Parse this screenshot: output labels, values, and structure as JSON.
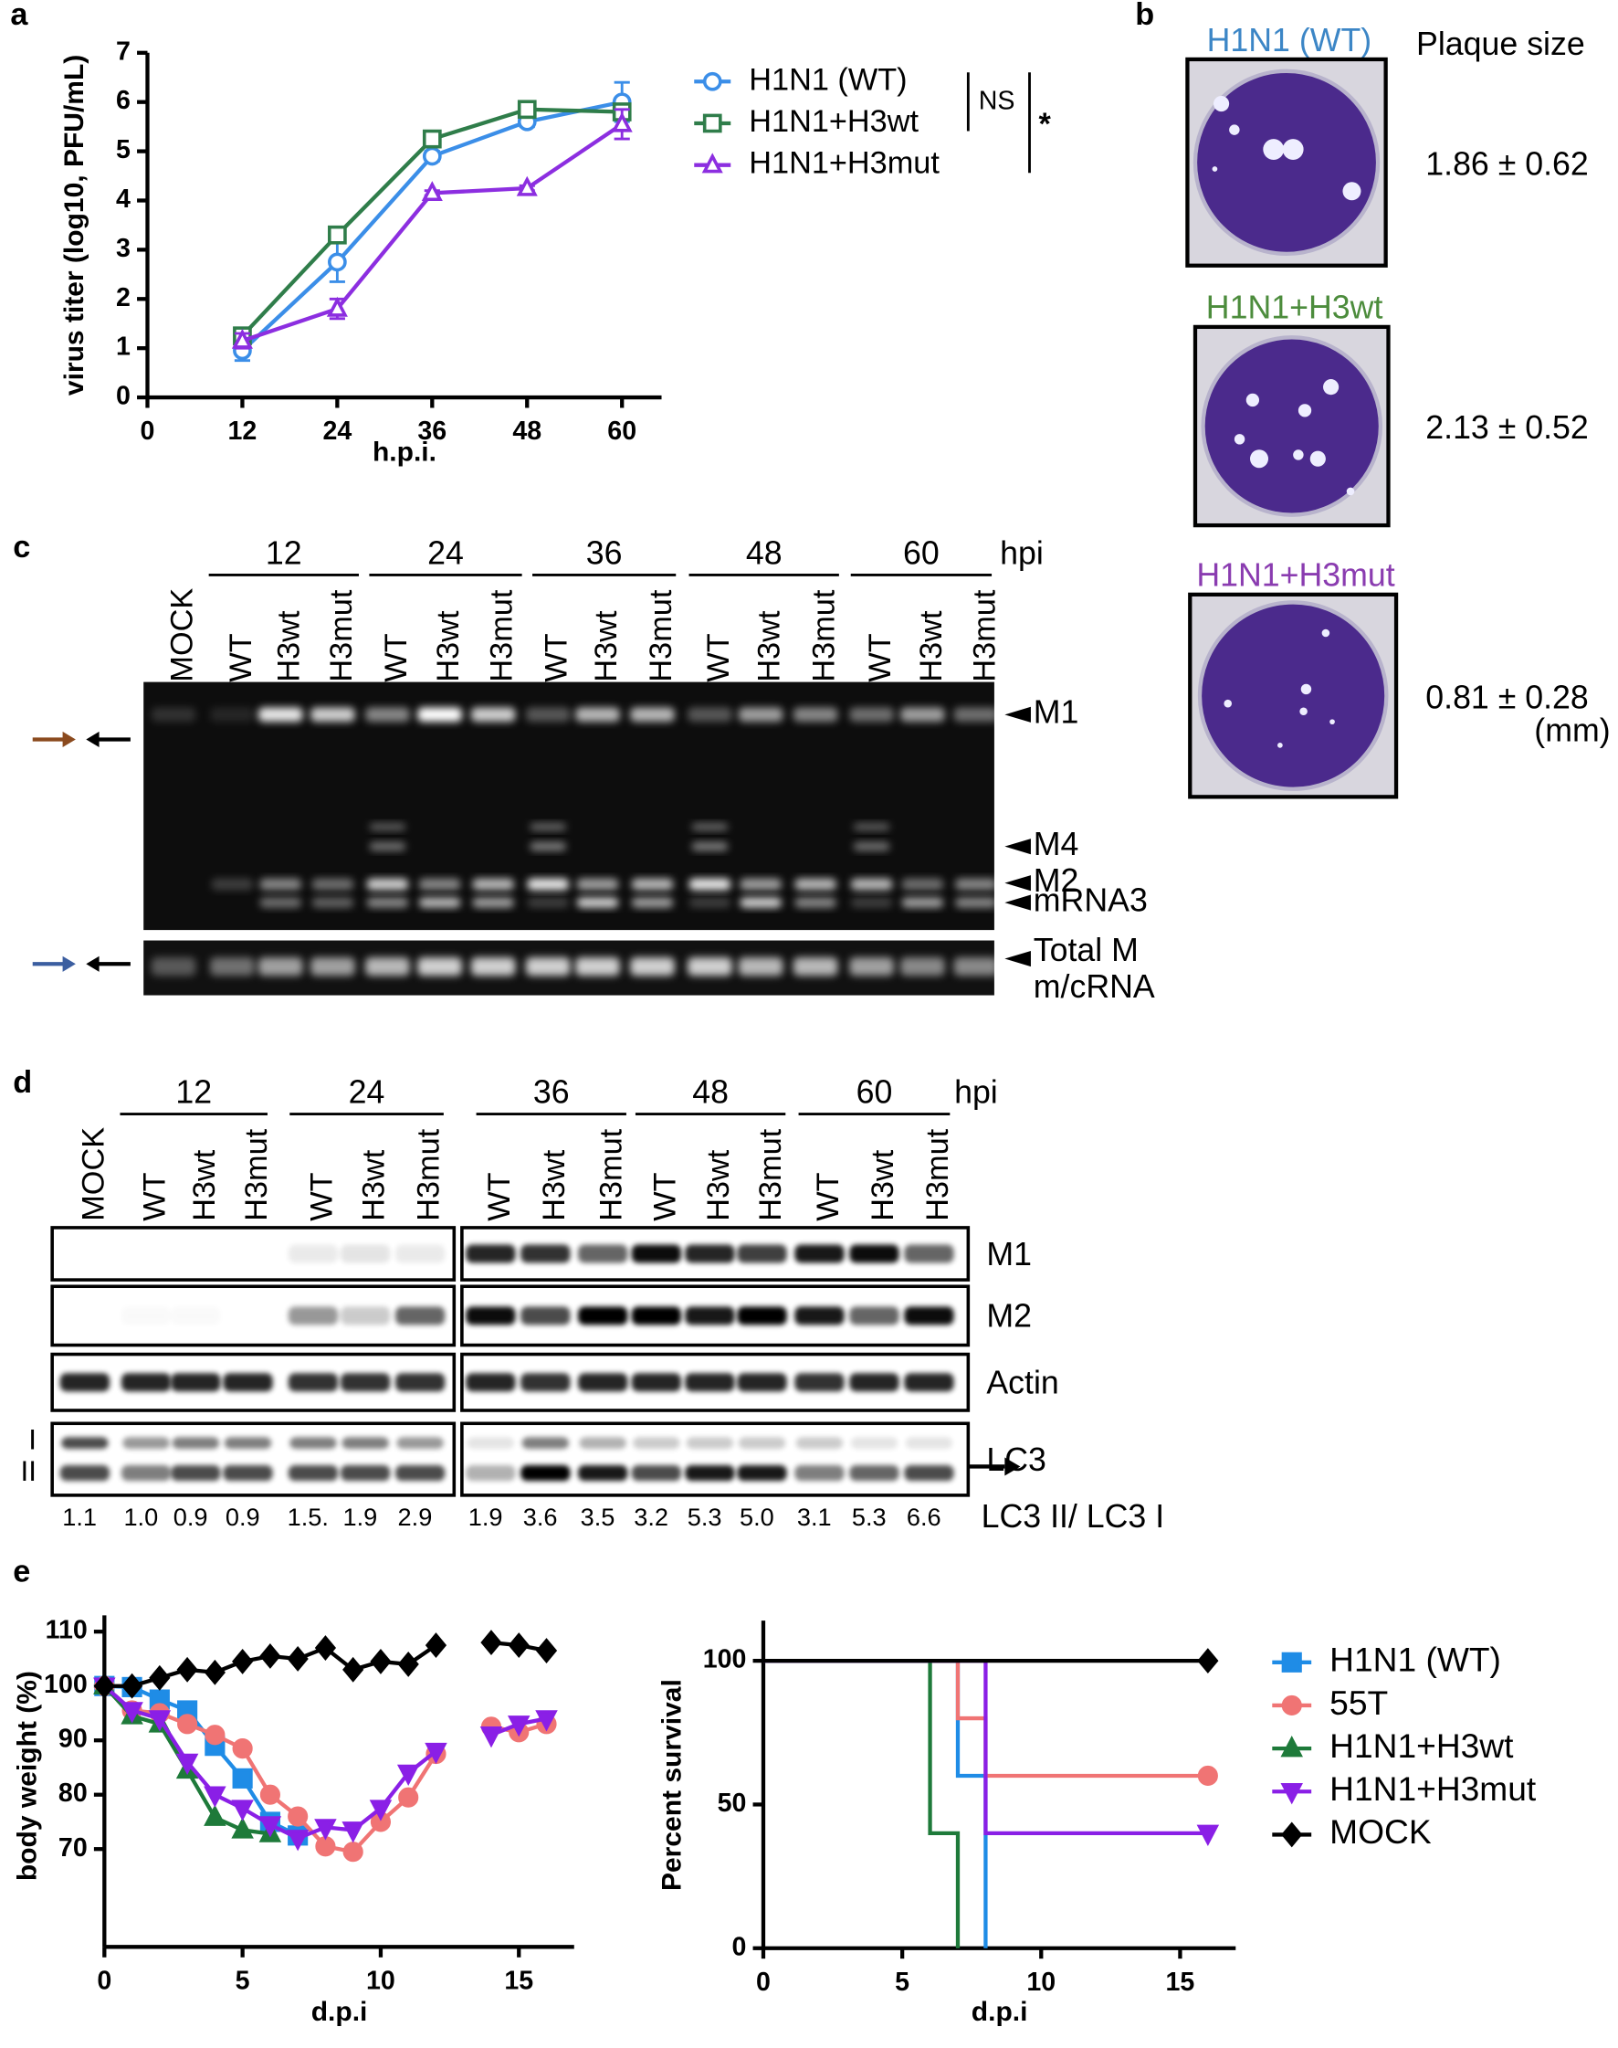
{
  "chart_data": [
    {
      "type": "line",
      "panel": "a",
      "ylabel": "virus titer (log10, PFU/mL)",
      "xlabel": "h.p.i.",
      "x": [
        12,
        24,
        36,
        48,
        60
      ],
      "xlim": [
        0,
        65
      ],
      "xticks": [
        0,
        12,
        24,
        36,
        48,
        60
      ],
      "ylim": [
        0,
        7
      ],
      "yticks": [
        0,
        1,
        2,
        3,
        4,
        5,
        6,
        7
      ],
      "marker_fill": "open",
      "legend": "right",
      "annotations": [
        "NS",
        "*"
      ],
      "series": [
        {
          "name": "H1N1 (WT)",
          "color": "#3b8ee8",
          "marker": "circle",
          "values": [
            0.95,
            2.75,
            4.9,
            5.6,
            6.0
          ],
          "errors": [
            0.2,
            0.4,
            0.1,
            0.1,
            0.4
          ]
        },
        {
          "name": "H1N1+H3wt",
          "color": "#2f7d4a",
          "marker": "square",
          "values": [
            1.25,
            3.3,
            5.25,
            5.85,
            5.8
          ],
          "errors": [
            0.15,
            0.1,
            0.1,
            0.15,
            0.1
          ]
        },
        {
          "name": "H1N1+H3mut",
          "color": "#8c2ee0",
          "marker": "triangle",
          "values": [
            1.15,
            1.8,
            4.15,
            4.25,
            5.55
          ],
          "errors": [
            0.15,
            0.2,
            0.05,
            0.05,
            0.3
          ]
        }
      ]
    },
    {
      "type": "line",
      "panel": "e",
      "ylabel": "body weight (%)",
      "xlabel": "d.p.i",
      "x": [
        0,
        1,
        2,
        3,
        4,
        5,
        6,
        7,
        8,
        9,
        10,
        11,
        12,
        13,
        14,
        15,
        16
      ],
      "xlim": [
        0,
        17
      ],
      "xticks": [
        0,
        5,
        10,
        15
      ],
      "ylim": [
        52,
        113
      ],
      "yticks": [
        70,
        80,
        90,
        100,
        110
      ],
      "marker_fill": "filled",
      "series": [
        {
          "name": "H1N1 (WT)",
          "color": "#1f8ce6",
          "marker": "square",
          "values": [
            100,
            99.8,
            97.5,
            95.5,
            89,
            83,
            75,
            72.5,
            null,
            null,
            null,
            null,
            null,
            null,
            null,
            null,
            null
          ]
        },
        {
          "name": "55T",
          "color": "#f07474",
          "marker": "circle",
          "values": [
            100,
            95.5,
            95,
            93,
            91,
            88.5,
            80,
            76,
            70.5,
            69.5,
            75,
            79.5,
            87.5,
            null,
            92.5,
            91.5,
            93
          ]
        },
        {
          "name": "H1N1+H3wt",
          "color": "#1e7a3a",
          "marker": "triangle",
          "values": [
            100,
            94.5,
            93,
            84.5,
            75.8,
            73.5,
            72.8,
            null,
            null,
            null,
            null,
            null,
            null,
            null,
            null,
            null,
            null
          ]
        },
        {
          "name": "H1N1+H3mut",
          "color": "#8a1fe6",
          "marker": "triangle-down",
          "values": [
            100,
            95.5,
            94,
            86,
            80,
            77.5,
            74.5,
            72,
            74,
            73.5,
            77.5,
            84,
            88,
            null,
            91,
            93,
            94
          ]
        },
        {
          "name": "MOCK",
          "color": "#000000",
          "marker": "diamond",
          "values": [
            100,
            100,
            101.5,
            103,
            102.5,
            104.5,
            105.5,
            105,
            107,
            103,
            104.5,
            104,
            107.5,
            null,
            108,
            107.5,
            106.5
          ]
        }
      ]
    },
    {
      "type": "step",
      "ylabel": "Percent survival",
      "xlabel": "d.p.i",
      "xlim": [
        0,
        17
      ],
      "xticks": [
        0,
        5,
        10,
        15
      ],
      "ylim": [
        0,
        114
      ],
      "yticks": [
        0,
        50,
        100
      ],
      "marker_fill": "filled",
      "legend": "right",
      "series": [
        {
          "name": "H1N1 (WT)",
          "color": "#1f8ce6",
          "marker": "square",
          "end_marker": false,
          "x": [
            0,
            7,
            7,
            8,
            8
          ],
          "values": [
            100,
            100,
            60,
            60,
            0
          ]
        },
        {
          "name": "55T",
          "color": "#f07474",
          "marker": "circle",
          "end_marker": true,
          "x": [
            0,
            7,
            7,
            8,
            8,
            16
          ],
          "values": [
            100,
            100,
            80,
            80,
            60,
            60
          ]
        },
        {
          "name": "H1N1+H3wt",
          "color": "#1e7a3a",
          "marker": "triangle",
          "end_marker": false,
          "x": [
            0,
            6,
            6,
            7,
            7
          ],
          "values": [
            100,
            100,
            40,
            40,
            0
          ]
        },
        {
          "name": "H1N1+H3mut",
          "color": "#8a1fe6",
          "marker": "triangle-down",
          "end_marker": true,
          "x": [
            0,
            8,
            8,
            16
          ],
          "values": [
            100,
            100,
            40,
            40
          ]
        },
        {
          "name": "MOCK",
          "color": "#000000",
          "marker": "diamond",
          "end_marker": true,
          "x": [
            0,
            16
          ],
          "values": [
            100,
            100
          ]
        }
      ]
    }
  ],
  "panel_b": {
    "letter": "b",
    "header": "Plaque size",
    "unit": "(mm)",
    "samples": [
      {
        "name": "H1N1 (WT)",
        "color": "#3c86c6",
        "size": "1.86 ± 0.62"
      },
      {
        "name": "H1N1+H3wt",
        "color": "#4c8c3c",
        "size": "2.13 ± 0.52"
      },
      {
        "name": "H1N1+H3mut",
        "color": "#8a3cb0",
        "size": "0.81 ± 0.28"
      }
    ]
  },
  "panel_c": {
    "letter": "c",
    "unit": "hpi",
    "times": [
      12,
      24,
      36,
      48,
      60
    ],
    "lanes": [
      "MOCK",
      "WT",
      "H3wt",
      "H3mut",
      "WT",
      "H3wt",
      "H3mut",
      "WT",
      "H3wt",
      "H3mut",
      "WT",
      "H3wt",
      "H3mut",
      "WT",
      "H3wt",
      "H3mut"
    ],
    "bands": [
      "M1",
      "M4",
      "M2",
      "mRNA3"
    ],
    "total": [
      "Total M",
      "m/cRNA"
    ]
  },
  "panel_d": {
    "letter": "d",
    "unit": "hpi",
    "times": [
      12,
      24,
      36,
      48,
      60
    ],
    "lanes": [
      "MOCK",
      "WT",
      "H3wt",
      "H3mut",
      "WT",
      "H3wt",
      "H3mut",
      "WT",
      "H3wt",
      "H3mut",
      "WT",
      "H3wt",
      "H3mut",
      "WT",
      "H3wt",
      "H3mut"
    ],
    "rows": [
      "M1",
      "M2",
      "Actin",
      "LC3"
    ],
    "lc3_forms": [
      "I",
      "II"
    ],
    "ratios": [
      "1.1",
      "1.0",
      "0.9",
      "0.9",
      "1.5.",
      "1.9",
      "2.9",
      "1.9",
      "3.6",
      "3.5",
      "3.2",
      "5.3",
      "5.0",
      "3.1",
      "5.3",
      "6.6"
    ],
    "ratio_label": "LC3 II/ LC3 I"
  }
}
